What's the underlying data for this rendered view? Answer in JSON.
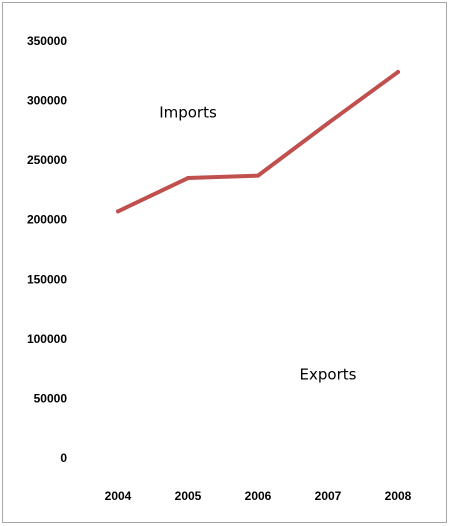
{
  "chart_data": {
    "type": "line",
    "title": "",
    "xlabel": "",
    "ylabel": "",
    "categories": [
      "2004",
      "2005",
      "2006",
      "2007",
      "2008"
    ],
    "ylim": [
      0,
      350000
    ],
    "yticks": [
      0,
      50000,
      100000,
      150000,
      200000,
      250000,
      300000,
      350000
    ],
    "ytick_labels": [
      "0",
      "50000",
      "100000",
      "150000",
      "200000",
      "250000",
      "300000",
      "350000"
    ],
    "grid": false,
    "legend": "none",
    "series": [
      {
        "values": [
          207000,
          235000,
          237000,
          281000,
          324000
        ],
        "color": "#c0504d"
      }
    ],
    "annotations": [
      {
        "text": "Imports",
        "x": "2005",
        "y": 290000
      },
      {
        "text": "Exports",
        "x": "2007",
        "y": 70000
      }
    ]
  }
}
